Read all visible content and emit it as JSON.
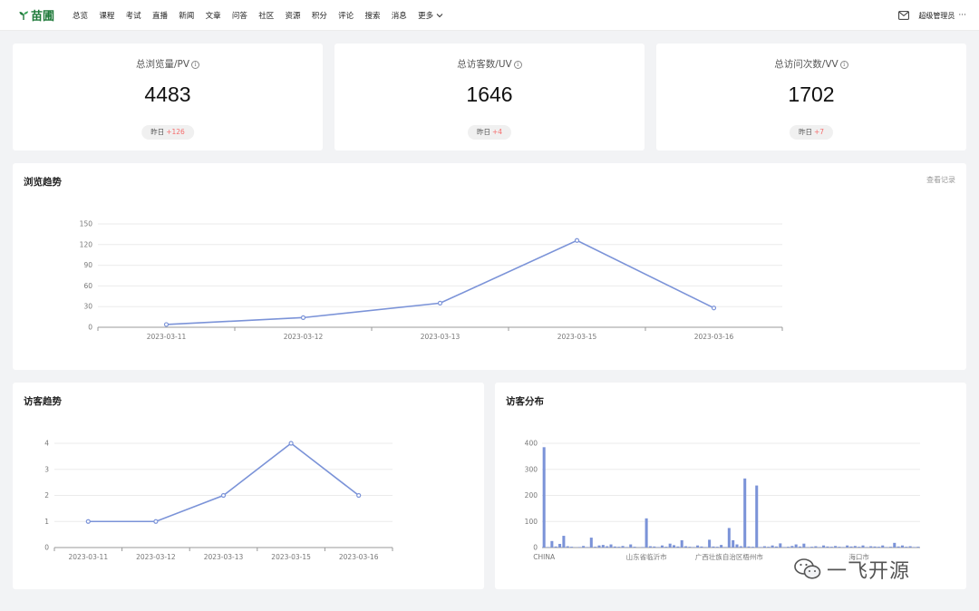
{
  "header": {
    "logo_text": "苗圃",
    "nav": [
      "总览",
      "课程",
      "考试",
      "直播",
      "新闻",
      "文章",
      "问答",
      "社区",
      "资源",
      "积分",
      "评论",
      "搜索",
      "消息"
    ],
    "more_label": "更多",
    "user_label": "超级管理员",
    "menu_dots": "···"
  },
  "stats": [
    {
      "title": "总浏览量/PV",
      "value": "4483",
      "yesterday_label": "昨日",
      "delta": "+126"
    },
    {
      "title": "总访客数/UV",
      "value": "1646",
      "yesterday_label": "昨日",
      "delta": "+4"
    },
    {
      "title": "总访问次数/VV",
      "value": "1702",
      "yesterday_label": "昨日",
      "delta": "+7"
    }
  ],
  "browse": {
    "title": "浏览趋势",
    "link": "查看记录"
  },
  "visitor_trend": {
    "title": "访客趋势"
  },
  "visitor_dist": {
    "title": "访客分布"
  },
  "watermark": {
    "text": "一飞开源"
  },
  "colors": {
    "accent": "#7b93d8",
    "brand": "#1f7a3a",
    "delta": "#f56c6c"
  },
  "chart_data": [
    {
      "type": "line",
      "x": [
        "2023-03-11",
        "2023-03-12",
        "2023-03-13",
        "2023-03-15",
        "2023-03-16"
      ],
      "values": [
        4,
        14,
        35,
        126,
        28
      ],
      "ylim": [
        0,
        150
      ],
      "yticks": [
        0,
        30,
        60,
        90,
        120,
        150
      ],
      "grid": true
    },
    {
      "type": "line",
      "x": [
        "2023-03-11",
        "2023-03-12",
        "2023-03-13",
        "2023-03-15",
        "2023-03-16"
      ],
      "values": [
        1,
        1,
        2,
        4,
        2
      ],
      "ylim": [
        0,
        4
      ],
      "yticks": [
        0,
        1,
        2,
        3,
        4
      ],
      "grid": true
    },
    {
      "type": "bar",
      "category_labels": [
        "CHINA",
        "山东省临沂市",
        "广西壮族自治区梧州市",
        "海口市"
      ],
      "values": [
        385,
        2,
        25,
        4,
        14,
        45,
        5,
        3,
        1,
        2,
        6,
        2,
        38,
        3,
        8,
        10,
        5,
        12,
        4,
        3,
        6,
        2,
        12,
        3,
        1,
        2,
        112,
        5,
        4,
        2,
        8,
        3,
        15,
        9,
        4,
        28,
        5,
        3,
        2,
        8,
        4,
        2,
        30,
        4,
        3,
        10,
        2,
        75,
        28,
        12,
        5,
        265,
        4,
        3,
        238,
        2,
        5,
        3,
        8,
        4,
        16,
        2,
        3,
        6,
        12,
        4,
        15,
        2,
        3,
        5,
        2,
        8,
        4,
        3,
        6,
        3,
        2,
        8,
        4,
        6,
        3,
        8,
        2,
        5,
        4,
        3,
        8,
        2,
        3,
        18,
        4,
        8,
        3,
        5,
        2,
        3
      ],
      "ylim": [
        0,
        400
      ],
      "yticks": [
        0,
        100,
        200,
        300,
        400
      ],
      "grid": true
    }
  ]
}
